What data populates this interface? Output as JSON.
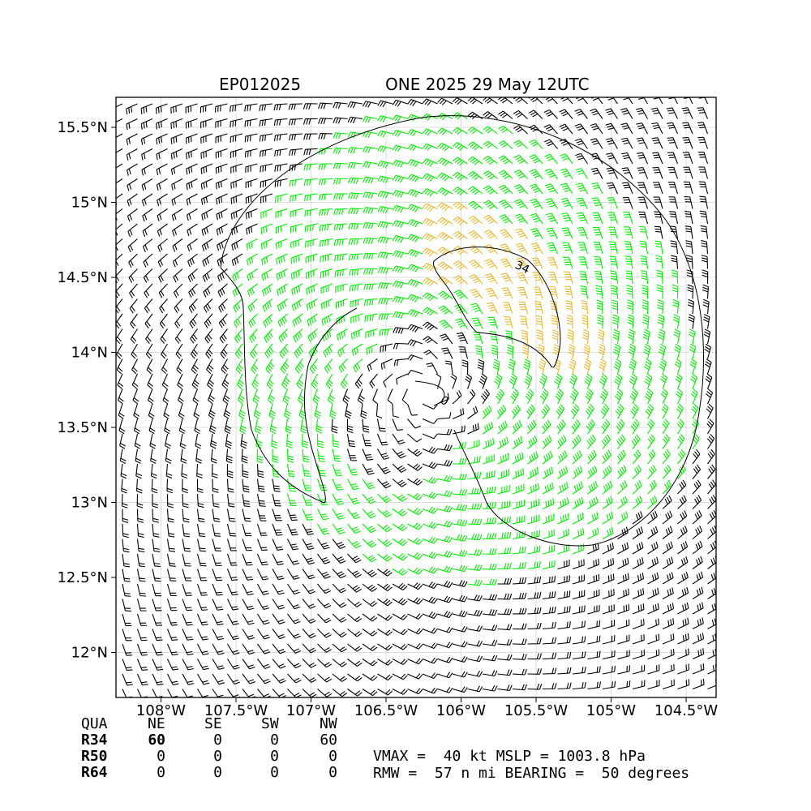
{
  "title": {
    "left": "EP012025",
    "right": "ONE 2025 29 May 12UTC"
  },
  "map": {
    "lon_range": [
      -108.3,
      -104.3
    ],
    "lat_range": [
      11.7,
      15.7
    ],
    "x_ticks": [
      {
        "value": -108.0,
        "label": "108°W"
      },
      {
        "value": -107.5,
        "label": "107.5°W"
      },
      {
        "value": -107.0,
        "label": "107°W"
      },
      {
        "value": -106.5,
        "label": "106.5°W"
      },
      {
        "value": -106.0,
        "label": "106°W"
      },
      {
        "value": -105.5,
        "label": "105.5°W"
      },
      {
        "value": -105.0,
        "label": "105°W"
      },
      {
        "value": -104.5,
        "label": "104.5°W"
      }
    ],
    "y_ticks": [
      {
        "value": 15.5,
        "label": "15.5°N"
      },
      {
        "value": 15.0,
        "label": "15°N"
      },
      {
        "value": 14.5,
        "label": "14.5°N"
      },
      {
        "value": 14.0,
        "label": "14°N"
      },
      {
        "value": 13.5,
        "label": "13.5°N"
      },
      {
        "value": 13.0,
        "label": "13°N"
      },
      {
        "value": 12.5,
        "label": "12.5°N"
      },
      {
        "value": 12.0,
        "label": "12°N"
      }
    ],
    "storm_center": {
      "lon": -106.25,
      "lat": 13.75
    },
    "contour_labels": [
      "34",
      "0"
    ],
    "barb_colors": {
      "weak": "#000000",
      "r34": "#00ee00",
      "r50": "#e8b830"
    },
    "gridline_color": "#dddddd"
  },
  "table": {
    "header": [
      "QUA",
      "NE",
      "SE",
      "SW",
      "NW"
    ],
    "rows": [
      {
        "label": "R34",
        "values": [
          "60",
          "0",
          "0",
          "60"
        ]
      },
      {
        "label": "R50",
        "values": [
          "0",
          "0",
          "0",
          "0"
        ]
      },
      {
        "label": "R64",
        "values": [
          "0",
          "0",
          "0",
          "0"
        ]
      }
    ]
  },
  "stats": {
    "line1": "VMAX =  40 kt MSLP = 1003.8 hPa",
    "line2": "RMW =  57 n mi BEARING =  50 degrees"
  }
}
